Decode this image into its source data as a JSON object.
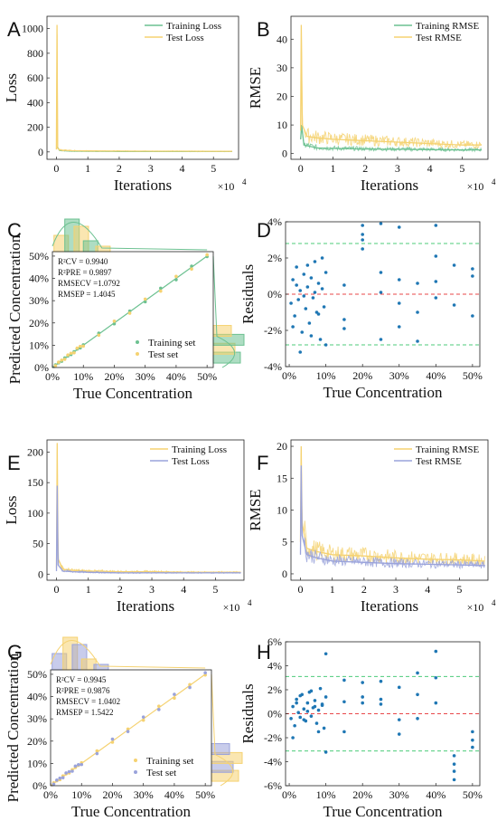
{
  "colors": {
    "green": "#6cc191",
    "yellow": "#f5d271",
    "purple": "#9aa3db",
    "blue": "#1f77b4",
    "red": "#e8474a",
    "dgreen": "#4ccb7a",
    "orange": "#e8b46a"
  },
  "chart_data": [
    {
      "panel": "A",
      "type": "line",
      "xlabel": "Iterations",
      "ylabel": "Loss",
      "x_exponent": "×10^4",
      "xlim": [
        -0.3,
        5.8
      ],
      "ylim": [
        -60,
        1100
      ],
      "xticks": [
        0,
        1,
        2,
        3,
        4,
        5
      ],
      "yticks": [
        0,
        200,
        400,
        600,
        800,
        1000
      ],
      "xtick_labels": [
        "0",
        "1",
        "2",
        "3",
        "4",
        "5"
      ],
      "ytick_labels": [
        "0",
        "200",
        "400",
        "600",
        "800",
        "1000"
      ],
      "legend": [
        "Training Loss",
        "Test Loss"
      ],
      "legend_placement": "top-right",
      "series": [
        {
          "name": "Training Loss",
          "color": "green",
          "x": [
            0,
            0.03,
            0.1,
            0.5,
            1,
            2,
            3,
            4,
            5,
            5.6
          ],
          "y": [
            30,
            40,
            12,
            6,
            5,
            4,
            4,
            3,
            3,
            3
          ]
        },
        {
          "name": "Test Loss",
          "color": "yellow",
          "x": [
            0,
            0.02,
            0.04,
            0.1,
            0.5,
            1,
            2,
            3,
            4,
            5,
            5.6
          ],
          "y": [
            20,
            1030,
            30,
            15,
            10,
            8,
            7,
            6,
            6,
            5,
            5
          ]
        }
      ]
    },
    {
      "panel": "B",
      "type": "line",
      "xlabel": "Iterations",
      "ylabel": "RMSE",
      "x_exponent": "×10^4",
      "xlim": [
        -0.3,
        5.8
      ],
      "ylim": [
        -2,
        48
      ],
      "xticks": [
        0,
        1,
        2,
        3,
        4,
        5
      ],
      "yticks": [
        0,
        10,
        20,
        30,
        40
      ],
      "xtick_labels": [
        "0",
        "1",
        "2",
        "3",
        "4",
        "5"
      ],
      "ytick_labels": [
        "0",
        "10",
        "20",
        "30",
        "40"
      ],
      "legend": [
        "Training RMSE",
        "Test RMSE"
      ],
      "legend_placement": "top-right",
      "series": [
        {
          "name": "Training RMSE",
          "color": "green",
          "x": [
            0,
            0.03,
            0.1,
            0.5,
            1,
            2,
            3,
            4,
            5,
            5.6
          ],
          "y": [
            5,
            10,
            3,
            2,
            1.8,
            1.6,
            1.5,
            1.4,
            1.3,
            1.3
          ]
        },
        {
          "name": "Test RMSE",
          "color": "yellow",
          "x": [
            0,
            0.02,
            0.05,
            0.2,
            0.5,
            1,
            2,
            3,
            4,
            5,
            5.6
          ],
          "y": [
            8,
            45,
            10,
            6,
            5.5,
            5,
            4.5,
            4,
            3.5,
            3,
            3
          ]
        }
      ]
    },
    {
      "panel": "C",
      "type": "scatter",
      "xlabel": "True Concentration",
      "ylabel": "Predicted Concentration",
      "xlim": [
        0,
        52
      ],
      "ylim": [
        0,
        52
      ],
      "xticks": [
        0,
        10,
        20,
        30,
        40,
        50
      ],
      "yticks": [
        0,
        10,
        20,
        30,
        40,
        50
      ],
      "xtick_labels": [
        "0%",
        "10%",
        "20%",
        "30%",
        "40%",
        "50%"
      ],
      "ytick_labels": [
        "0%",
        "10%",
        "20%",
        "30%",
        "40%",
        "50%"
      ],
      "legend": [
        "Training set",
        "Test set"
      ],
      "legend_placement": "bottom-right",
      "stats": [
        "R²CV = 0.9940",
        "R²PRE = 0.9897",
        "RMSECV =1.0792",
        "RMSEP = 1.4045"
      ],
      "series": [
        {
          "name": "Training set",
          "color": "green",
          "x": [
            1,
            2,
            3,
            4,
            5,
            6,
            7,
            8,
            9,
            10,
            15,
            20,
            25,
            30,
            35,
            40,
            45,
            50
          ],
          "y": [
            1.2,
            2.1,
            2.8,
            4.3,
            5.2,
            5.8,
            7.1,
            8.3,
            8.8,
            10.2,
            15.4,
            19.6,
            25.3,
            29.5,
            35.6,
            39.4,
            45.5,
            49.8
          ]
        },
        {
          "name": "Test set",
          "color": "yellow",
          "x": [
            1,
            2,
            3,
            4,
            5,
            6,
            7,
            8,
            9,
            10,
            15,
            20,
            25,
            30,
            35,
            40,
            45,
            50
          ],
          "y": [
            0.8,
            2.4,
            3.3,
            3.7,
            5.6,
            6.4,
            6.6,
            8.7,
            9.5,
            9.6,
            14.5,
            20.8,
            24.4,
            30.7,
            34.3,
            40.9,
            44.2,
            50.6
          ]
        }
      ]
    },
    {
      "panel": "D",
      "type": "scatter",
      "xlabel": "True Concentration",
      "ylabel": "Residuals",
      "xlim": [
        -1,
        52
      ],
      "ylim": [
        -4,
        4
      ],
      "xticks": [
        0,
        10,
        20,
        30,
        40,
        50
      ],
      "yticks": [
        -4,
        -2,
        0,
        2,
        4
      ],
      "xtick_labels": [
        "0%",
        "10%",
        "20%",
        "30%",
        "40%",
        "50%"
      ],
      "ytick_labels": [
        "-4%",
        "-2%",
        "0%",
        "2%",
        "4%"
      ],
      "reference_lines": {
        "zero": 0,
        "upper": 2.8,
        "lower": -2.8
      },
      "series": [
        {
          "name": "",
          "color": "blue",
          "x": [
            0.5,
            1,
            1.5,
            2,
            2.5,
            3,
            3.5,
            4,
            4.5,
            5,
            5.5,
            6,
            6.5,
            7,
            7.5,
            8,
            8.5,
            9,
            9.5,
            10,
            1,
            2,
            3,
            4,
            5,
            6,
            7,
            8,
            9,
            10,
            15,
            15,
            15,
            20,
            20,
            20,
            20,
            25,
            25,
            25,
            25,
            30,
            30,
            30,
            30,
            35,
            35,
            35,
            40,
            40,
            40,
            40,
            45,
            45,
            50,
            50,
            50
          ],
          "y": [
            -0.5,
            0.8,
            -1.2,
            1.5,
            -0.3,
            0.2,
            -2.1,
            1.1,
            -0.8,
            0.4,
            -1.6,
            0.9,
            -0.2,
            1.8,
            -1.0,
            0.6,
            -2.5,
            0.3,
            -0.7,
            1.2,
            -1.8,
            0.5,
            -3.2,
            -0.1,
            1.6,
            -2.3,
            0.1,
            -1.1,
            2.0,
            -2.8,
            -1.4,
            0.5,
            -1.9,
            2.5,
            3.3,
            3.8,
            3.0,
            3.9,
            1.2,
            0.1,
            -2.5,
            3.7,
            0.8,
            -0.5,
            -1.8,
            0.6,
            -1.0,
            -2.6,
            3.8,
            2.1,
            0.7,
            -0.2,
            1.6,
            -0.6,
            1.4,
            -1.2,
            1.0
          ]
        }
      ]
    },
    {
      "panel": "E",
      "type": "line",
      "xlabel": "Iterations",
      "ylabel": "Loss",
      "x_exponent": "×10^4",
      "xlim": [
        -0.3,
        5.9
      ],
      "ylim": [
        -10,
        220
      ],
      "xticks": [
        0,
        1,
        2,
        3,
        4,
        5
      ],
      "yticks": [
        0,
        50,
        100,
        150,
        200
      ],
      "xtick_labels": [
        "0",
        "1",
        "2",
        "3",
        "4",
        "5"
      ],
      "ytick_labels": [
        "0",
        "50",
        "100",
        "150",
        "200"
      ],
      "legend": [
        "Training Loss",
        "Test Loss"
      ],
      "legend_placement": "top-right",
      "series": [
        {
          "name": "Training Loss",
          "color": "yellow",
          "x": [
            0,
            0.02,
            0.05,
            0.2,
            0.5,
            1,
            2,
            3,
            4,
            5,
            5.8
          ],
          "y": [
            10,
            215,
            25,
            8,
            6,
            5,
            4,
            4,
            3,
            3,
            3
          ]
        },
        {
          "name": "Test Loss",
          "color": "purple",
          "x": [
            0,
            0.02,
            0.05,
            0.2,
            0.5,
            1,
            2,
            3,
            4,
            5,
            5.8
          ],
          "y": [
            5,
            145,
            15,
            5,
            4,
            3,
            2,
            2,
            2,
            2,
            2
          ]
        }
      ]
    },
    {
      "panel": "F",
      "type": "line",
      "xlabel": "Iterations",
      "ylabel": "RMSE",
      "x_exponent": "×10^4",
      "xlim": [
        -0.3,
        5.9
      ],
      "ylim": [
        -1,
        21
      ],
      "xticks": [
        0,
        1,
        2,
        3,
        4,
        5
      ],
      "yticks": [
        0,
        5,
        10,
        15,
        20
      ],
      "xtick_labels": [
        "0",
        "1",
        "2",
        "3",
        "4",
        "5"
      ],
      "ytick_labels": [
        "0",
        "5",
        "10",
        "15",
        "20"
      ],
      "legend": [
        "Training RMSE",
        "Test RMSE"
      ],
      "legend_placement": "top-right",
      "series": [
        {
          "name": "Training RMSE",
          "color": "yellow",
          "x": [
            0,
            0.02,
            0.05,
            0.2,
            0.5,
            1,
            2,
            3,
            4,
            5,
            5.8
          ],
          "y": [
            5,
            20,
            8,
            4,
            3.5,
            3,
            2.8,
            2.5,
            2.3,
            2.2,
            2
          ]
        },
        {
          "name": "Test RMSE",
          "color": "purple",
          "x": [
            0,
            0.02,
            0.05,
            0.2,
            0.5,
            1,
            2,
            3,
            4,
            5,
            5.8
          ],
          "y": [
            3,
            17,
            6,
            3,
            2.5,
            2,
            1.8,
            1.6,
            1.5,
            1.4,
            1.3
          ]
        }
      ]
    },
    {
      "panel": "G",
      "type": "scatter",
      "xlabel": "True Concentration",
      "ylabel": "Predicted Concentration",
      "xlim": [
        0,
        52
      ],
      "ylim": [
        0,
        52
      ],
      "xticks": [
        0,
        10,
        20,
        30,
        40,
        50
      ],
      "yticks": [
        0,
        10,
        20,
        30,
        40,
        50
      ],
      "xtick_labels": [
        "0%",
        "10%",
        "20%",
        "30%",
        "40%",
        "50%"
      ],
      "ytick_labels": [
        "0%",
        "10%",
        "20%",
        "30%",
        "40%",
        "50%"
      ],
      "legend": [
        "Training set",
        "Test set"
      ],
      "legend_placement": "bottom-right",
      "stats": [
        "R²CV = 0.9945",
        "R²PRE = 0.9876",
        "RMSECV = 1.0402",
        "RMSEP = 1.5422"
      ],
      "series": [
        {
          "name": "Training set",
          "color": "yellow",
          "x": [
            1,
            2,
            3,
            4,
            5,
            6,
            7,
            8,
            9,
            10,
            15,
            20,
            25,
            30,
            35,
            40,
            45,
            50
          ],
          "y": [
            1.3,
            2.2,
            2.7,
            4.4,
            5.3,
            5.7,
            7.2,
            8.2,
            9.1,
            10.3,
            15.6,
            19.5,
            25.4,
            29.4,
            35.7,
            39.3,
            45.4,
            49.7
          ]
        },
        {
          "name": "Test set",
          "color": "purple",
          "x": [
            1,
            2,
            3,
            4,
            5,
            6,
            7,
            8,
            9,
            10,
            15,
            20,
            25,
            30,
            35,
            40,
            45,
            50
          ],
          "y": [
            0.7,
            2.5,
            3.4,
            3.6,
            5.7,
            6.3,
            6.5,
            8.8,
            9.4,
            9.5,
            14.4,
            20.9,
            24.3,
            30.8,
            34.2,
            41.0,
            44.1,
            50.7
          ]
        }
      ]
    },
    {
      "panel": "H",
      "type": "scatter",
      "xlabel": "True Concentration",
      "ylabel": "Residuals",
      "xlim": [
        -1,
        52
      ],
      "ylim": [
        -6,
        6
      ],
      "xticks": [
        0,
        10,
        20,
        30,
        40,
        50
      ],
      "yticks": [
        -6,
        -4,
        -2,
        0,
        2,
        4,
        6
      ],
      "xtick_labels": [
        "0%",
        "10%",
        "20%",
        "30%",
        "40%",
        "50%"
      ],
      "ytick_labels": [
        "-6%",
        "-4%",
        "-2%",
        "0%",
        "2%",
        "4%",
        "6%"
      ],
      "reference_lines": {
        "zero": 0,
        "upper": 3.1,
        "lower": -3.1
      },
      "series": [
        {
          "name": "",
          "color": "blue",
          "x": [
            0.5,
            1,
            1.5,
            2,
            2.5,
            3,
            3.5,
            4,
            4.5,
            5,
            5.5,
            6,
            6.5,
            7,
            7.5,
            8,
            8.5,
            9,
            9.5,
            10,
            1,
            2,
            3,
            4,
            5,
            6,
            7,
            8,
            9,
            10,
            10,
            15,
            15,
            15,
            20,
            20,
            20,
            25,
            25,
            25,
            30,
            30,
            30,
            35,
            35,
            35,
            40,
            40,
            40,
            45,
            45,
            45,
            45,
            50,
            50,
            50
          ],
          "y": [
            -0.4,
            0.6,
            -1.0,
            1.2,
            0.1,
            -0.3,
            1.6,
            0.4,
            -0.6,
            0.9,
            1.8,
            -0.2,
            0.5,
            1.1,
            -0.8,
            0.3,
            2.1,
            0.7,
            -1.2,
            1.4,
            -2.0,
            0.9,
            1.5,
            -0.5,
            0.2,
            1.9,
            0.6,
            -1.5,
            0.8,
            5.0,
            -3.2,
            2.8,
            1.0,
            -1.5,
            2.6,
            1.4,
            0.9,
            2.7,
            1.2,
            0.8,
            2.2,
            -0.5,
            -1.7,
            3.4,
            1.6,
            -0.4,
            5.2,
            3.0,
            0.9,
            -3.5,
            -4.2,
            -4.8,
            -5.5,
            -1.5,
            -2.2,
            -2.8
          ]
        }
      ]
    }
  ]
}
